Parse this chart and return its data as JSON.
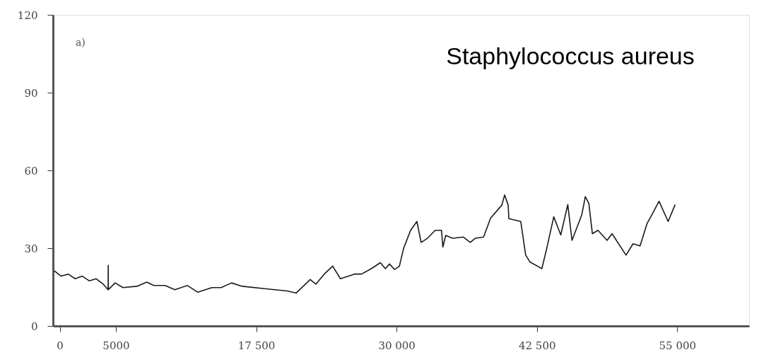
{
  "chart_data": {
    "type": "line",
    "x": [
      -500,
      125,
      750,
      1375,
      2000,
      2625,
      3250,
      3875,
      4310,
      4320,
      4330,
      4940,
      5625,
      6875,
      7750,
      8375,
      9375,
      10250,
      11375,
      12300,
      13560,
      14375,
      15300,
      16250,
      18375,
      20250,
      21060,
      22310,
      22810,
      23560,
      24310,
      25000,
      26250,
      26875,
      27750,
      28560,
      29000,
      29375,
      29810,
      30250,
      30625,
      31250,
      31810,
      32190,
      32750,
      33440,
      34000,
      34125,
      34375,
      35000,
      35940,
      36560,
      37000,
      37750,
      38375,
      39375,
      39625,
      39940,
      40000,
      41060,
      41500,
      41875,
      42940,
      43375,
      44000,
      44625,
      45250,
      45625,
      46500,
      46810,
      47125,
      47440,
      47940,
      48750,
      49190,
      50440,
      51060,
      51690,
      52310,
      52750,
      53375,
      54190,
      54810
    ],
    "series": [
      {
        "color": "#1a1a1a",
        "values": [
          21.3,
          19.2,
          20.0,
          18.2,
          19.2,
          17.4,
          18.2,
          16.1,
          14.0,
          23.4,
          14.0,
          16.6,
          14.8,
          15.3,
          16.9,
          15.6,
          15.6,
          14.0,
          15.6,
          13.0,
          14.8,
          14.8,
          16.6,
          15.3,
          14.3,
          13.5,
          12.7,
          17.9,
          16.1,
          20.0,
          23.1,
          18.2,
          20.0,
          20.0,
          22.1,
          24.4,
          22.1,
          23.9,
          21.8,
          23.0,
          29.9,
          36.9,
          40.3,
          32.2,
          33.8,
          36.9,
          36.9,
          30.4,
          34.9,
          33.8,
          34.3,
          32.2,
          33.8,
          34.3,
          41.6,
          46.6,
          50.5,
          46.6,
          41.4,
          40.3,
          27.3,
          24.7,
          22.1,
          29.9,
          42.1,
          35.1,
          46.8,
          33.0,
          42.9,
          49.9,
          47.3,
          35.6,
          36.9,
          33.0,
          35.6,
          27.3,
          31.7,
          30.9,
          39.5,
          42.9,
          48.1,
          40.3,
          46.8
        ]
      }
    ],
    "xlim": [
      -600,
      61400
    ],
    "ylim": [
      0,
      120
    ],
    "xticks": [
      0,
      5000,
      {
        "value": 17500,
        "label": "17 500"
      },
      {
        "value": 30000,
        "label": "30 000"
      },
      {
        "value": 42500,
        "label": "42 500"
      },
      {
        "value": 55000,
        "label": "55 000"
      }
    ],
    "yticks": [
      0,
      30,
      60,
      90,
      120
    ],
    "annotations": [
      "a)",
      "Staphylococcus aureus"
    ],
    "grid": false,
    "marker": "none",
    "line_style": "solid"
  }
}
